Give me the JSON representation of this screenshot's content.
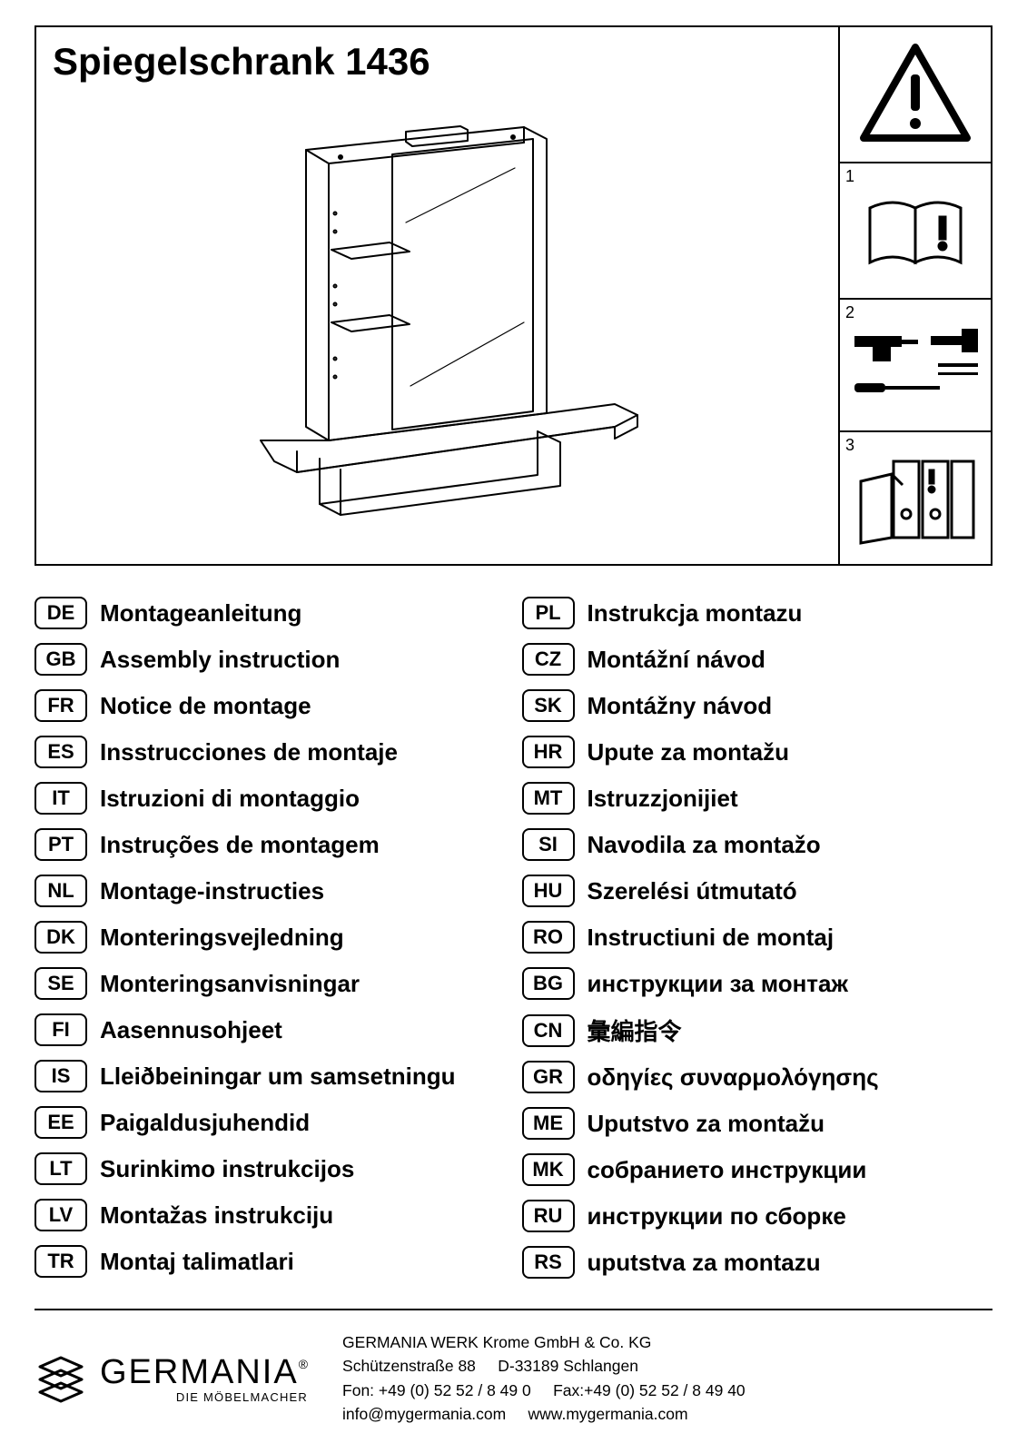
{
  "title": "Spiegelschrank 1436",
  "steps": [
    "1",
    "2",
    "3"
  ],
  "languages_left": [
    {
      "code": "DE",
      "label": "Montageanleitung"
    },
    {
      "code": "GB",
      "label": "Assembly instruction"
    },
    {
      "code": "FR",
      "label": "Notice de montage"
    },
    {
      "code": "ES",
      "label": "Insstrucciones de montaje"
    },
    {
      "code": "IT",
      "label": "Istruzioni di montaggio"
    },
    {
      "code": "PT",
      "label": "Instruções de montagem"
    },
    {
      "code": "NL",
      "label": "Montage-instructies"
    },
    {
      "code": "DK",
      "label": "Monteringsvejledning"
    },
    {
      "code": "SE",
      "label": "Monteringsanvisningar"
    },
    {
      "code": "FI",
      "label": "Aasennusohjeet"
    },
    {
      "code": "IS",
      "label": "Lleiðbeiningar um samsetningu"
    },
    {
      "code": "EE",
      "label": "Paigaldusjuhendid"
    },
    {
      "code": "LT",
      "label": "Surinkimo instrukcijos"
    },
    {
      "code": "LV",
      "label": "Montažas instrukciju"
    },
    {
      "code": "TR",
      "label": "Montaj talimatlari"
    }
  ],
  "languages_right": [
    {
      "code": "PL",
      "label": "Instrukcja montazu"
    },
    {
      "code": "CZ",
      "label": "Montážní návod"
    },
    {
      "code": "SK",
      "label": "Montážny návod"
    },
    {
      "code": "HR",
      "label": "Upute za montažu"
    },
    {
      "code": "MT",
      "label": "Istruzzjonijiet"
    },
    {
      "code": "SI",
      "label": "Navodila za montažo"
    },
    {
      "code": "HU",
      "label": "Szerelési útmutató"
    },
    {
      "code": "RO",
      "label": "Instructiuni de montaj"
    },
    {
      "code": "BG",
      "label": "инструкции за монтаж"
    },
    {
      "code": "CN",
      "label": "彙編指令"
    },
    {
      "code": "GR",
      "label": "οδηγίες συναρμολόγησης"
    },
    {
      "code": "ME",
      "label": "Uputstvo za montažu"
    },
    {
      "code": "MK",
      "label": "собранието инструкции"
    },
    {
      "code": "RU",
      "label": "инструкции по сборке"
    },
    {
      "code": "RS",
      "label": "uputstva za montazu"
    }
  ],
  "logo": {
    "name": "GERMANIA",
    "sub": "DIE MÖBELMACHER",
    "reg": "®"
  },
  "contact": {
    "line1": "GERMANIA WERK Krome GmbH & Co. KG",
    "line2a": "Schützenstraße 88",
    "line2b": "D-33189 Schlangen",
    "line3a": "Fon: +49 (0) 52 52 / 8 49 0",
    "line3b": "Fax:+49 (0) 52 52 / 8 49 40",
    "line4a": "info@mygermania.com",
    "line4b": "www.mygermania.com"
  }
}
